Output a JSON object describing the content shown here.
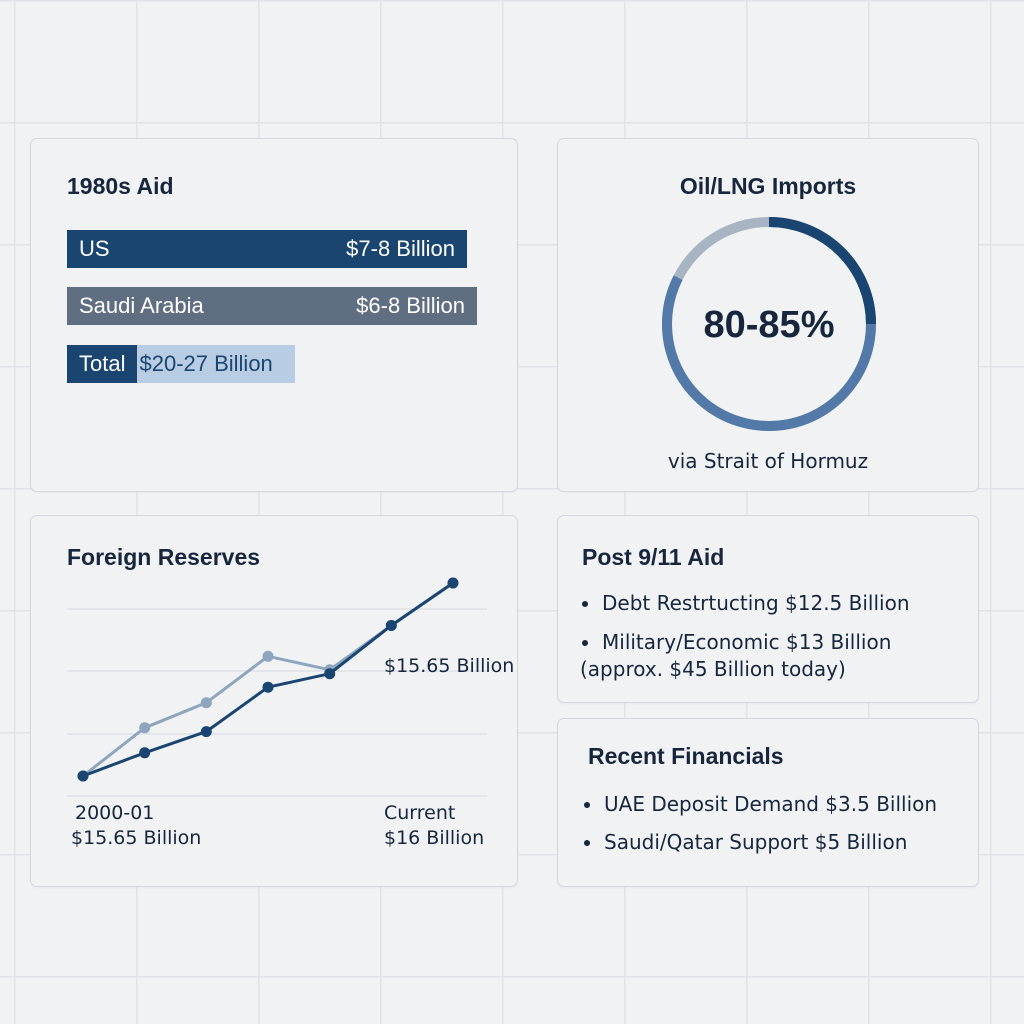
{
  "colors": {
    "primary_navy": "#1a4570",
    "slate": "#5f6e80",
    "light_blue": "#b8cde4",
    "donut_track": "#a8b4c2",
    "donut_arc": "#5379a8",
    "series_dark": "#1a4570",
    "series_light": "#8fa4bd"
  },
  "aid_1980s": {
    "title": "1980s Aid",
    "rows": [
      {
        "label": "US",
        "value": "$7-8 Billion"
      },
      {
        "label": "Saudi Arabia",
        "value": "$6-8 Billion"
      },
      {
        "label": "Total",
        "value": "$20-27 Billion"
      }
    ]
  },
  "oil_imports": {
    "title": "Oil/LNG Imports",
    "center_label": "80-85%",
    "share_fraction": 0.825,
    "footnote": "via Strait of Hormuz"
  },
  "foreign_reserves": {
    "title": "Foreign Reserves",
    "mid_label": "$15.65 Billion",
    "start_period": "2000-01",
    "start_value": "$15.65 Billion",
    "end_period": "Current",
    "end_value": "$16 Billion"
  },
  "chart_data": {
    "type": "line",
    "title": "Foreign Reserves",
    "x": [
      0,
      1,
      2,
      3,
      4,
      5,
      6
    ],
    "ylim": [
      0,
      1
    ],
    "grid": true,
    "series": [
      {
        "values": [
          0.0,
          0.12,
          0.23,
          0.46,
          0.53,
          0.78,
          1.0
        ],
        "color": "#1a4570"
      },
      {
        "values": [
          0.0,
          0.25,
          0.38,
          0.62,
          0.55,
          0.78,
          1.0
        ],
        "color": "#8fa4bd"
      }
    ]
  },
  "post_911_aid": {
    "title": "Post 9/11 Aid",
    "items": [
      {
        "text": "Debt Restrtucting $12.5 Billion"
      },
      {
        "text": "Military/Economic $13 Billion",
        "subtext": "(approx. $45 Billion today)"
      }
    ]
  },
  "recent_financials": {
    "title": "Recent Financials",
    "items": [
      {
        "text": "UAE Deposit Demand $3.5 Billion"
      },
      {
        "text": "Saudi/Qatar Support $5 Billion"
      }
    ]
  }
}
